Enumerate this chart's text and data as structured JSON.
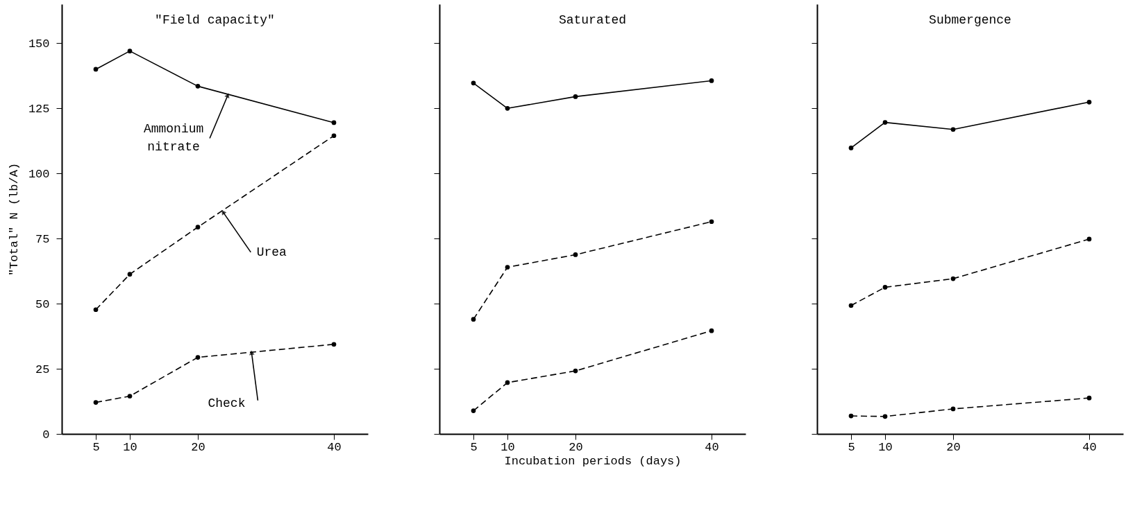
{
  "chart_data": [
    {
      "type": "line",
      "title": "\"Field capacity\"",
      "ylabel": "\"Total\" N (lb/A)",
      "x": [
        5,
        10,
        20,
        40
      ],
      "xlim": [
        0,
        45
      ],
      "xticks": [
        5,
        10,
        20,
        40
      ],
      "ylim": [
        0,
        165
      ],
      "yticks": [
        0,
        25,
        50,
        75,
        100,
        125,
        150
      ],
      "marker": "circle",
      "series": [
        {
          "color": "#000000",
          "line_style": "solid",
          "values": [
            140,
            147,
            133.5,
            119.5
          ]
        },
        {
          "color": "#000000",
          "line_style": "dashed",
          "values": [
            47.7,
            61.3,
            79.4,
            114.5
          ]
        },
        {
          "color": "#000000",
          "line_style": "dashed",
          "values": [
            12.1,
            14.5,
            29.4,
            34.4
          ]
        }
      ],
      "annotations": [
        {
          "text": "Ammonium nitrate",
          "x": 24.4,
          "y": 130
        },
        {
          "text": "Urea",
          "x": 23.7,
          "y": 85.2
        },
        {
          "text": "Check",
          "x": 27.9,
          "y": 31.2
        }
      ]
    },
    {
      "type": "line",
      "title": "Saturated",
      "xlabel": "Incubation periods (days)",
      "x": [
        5,
        10,
        20,
        40
      ],
      "xlim": [
        0,
        45
      ],
      "xticks": [
        5,
        10,
        20,
        40
      ],
      "ylim": [
        0,
        165
      ],
      "yticks": [
        0,
        25,
        50,
        75,
        100,
        125,
        150
      ],
      "tick_labels": "x",
      "marker": "circle",
      "series": [
        {
          "color": "#000000",
          "line_style": "solid",
          "values": [
            134.7,
            125,
            129.5,
            135.6
          ]
        },
        {
          "color": "#000000",
          "line_style": "dashed",
          "values": [
            44,
            64,
            68.8,
            81.5
          ]
        },
        {
          "color": "#000000",
          "line_style": "dashed",
          "values": [
            8.9,
            19.7,
            24.2,
            39.6
          ]
        }
      ]
    },
    {
      "type": "line",
      "title": "Submergence",
      "x": [
        5,
        10,
        20,
        40
      ],
      "xlim": [
        0,
        45
      ],
      "xticks": [
        5,
        10,
        20,
        40
      ],
      "ylim": [
        0,
        165
      ],
      "yticks": [
        0,
        25,
        50,
        75,
        100,
        125,
        150
      ],
      "tick_labels": "x",
      "marker": "circle",
      "series": [
        {
          "color": "#000000",
          "line_style": "solid",
          "values": [
            109.8,
            119.6,
            116.9,
            127.4
          ]
        },
        {
          "color": "#000000",
          "line_style": "dashed",
          "values": [
            49.3,
            56.3,
            59.6,
            74.8
          ]
        },
        {
          "color": "#000000",
          "line_style": "dashed",
          "values": [
            6.9,
            6.7,
            9.6,
            13.8
          ]
        }
      ]
    }
  ]
}
